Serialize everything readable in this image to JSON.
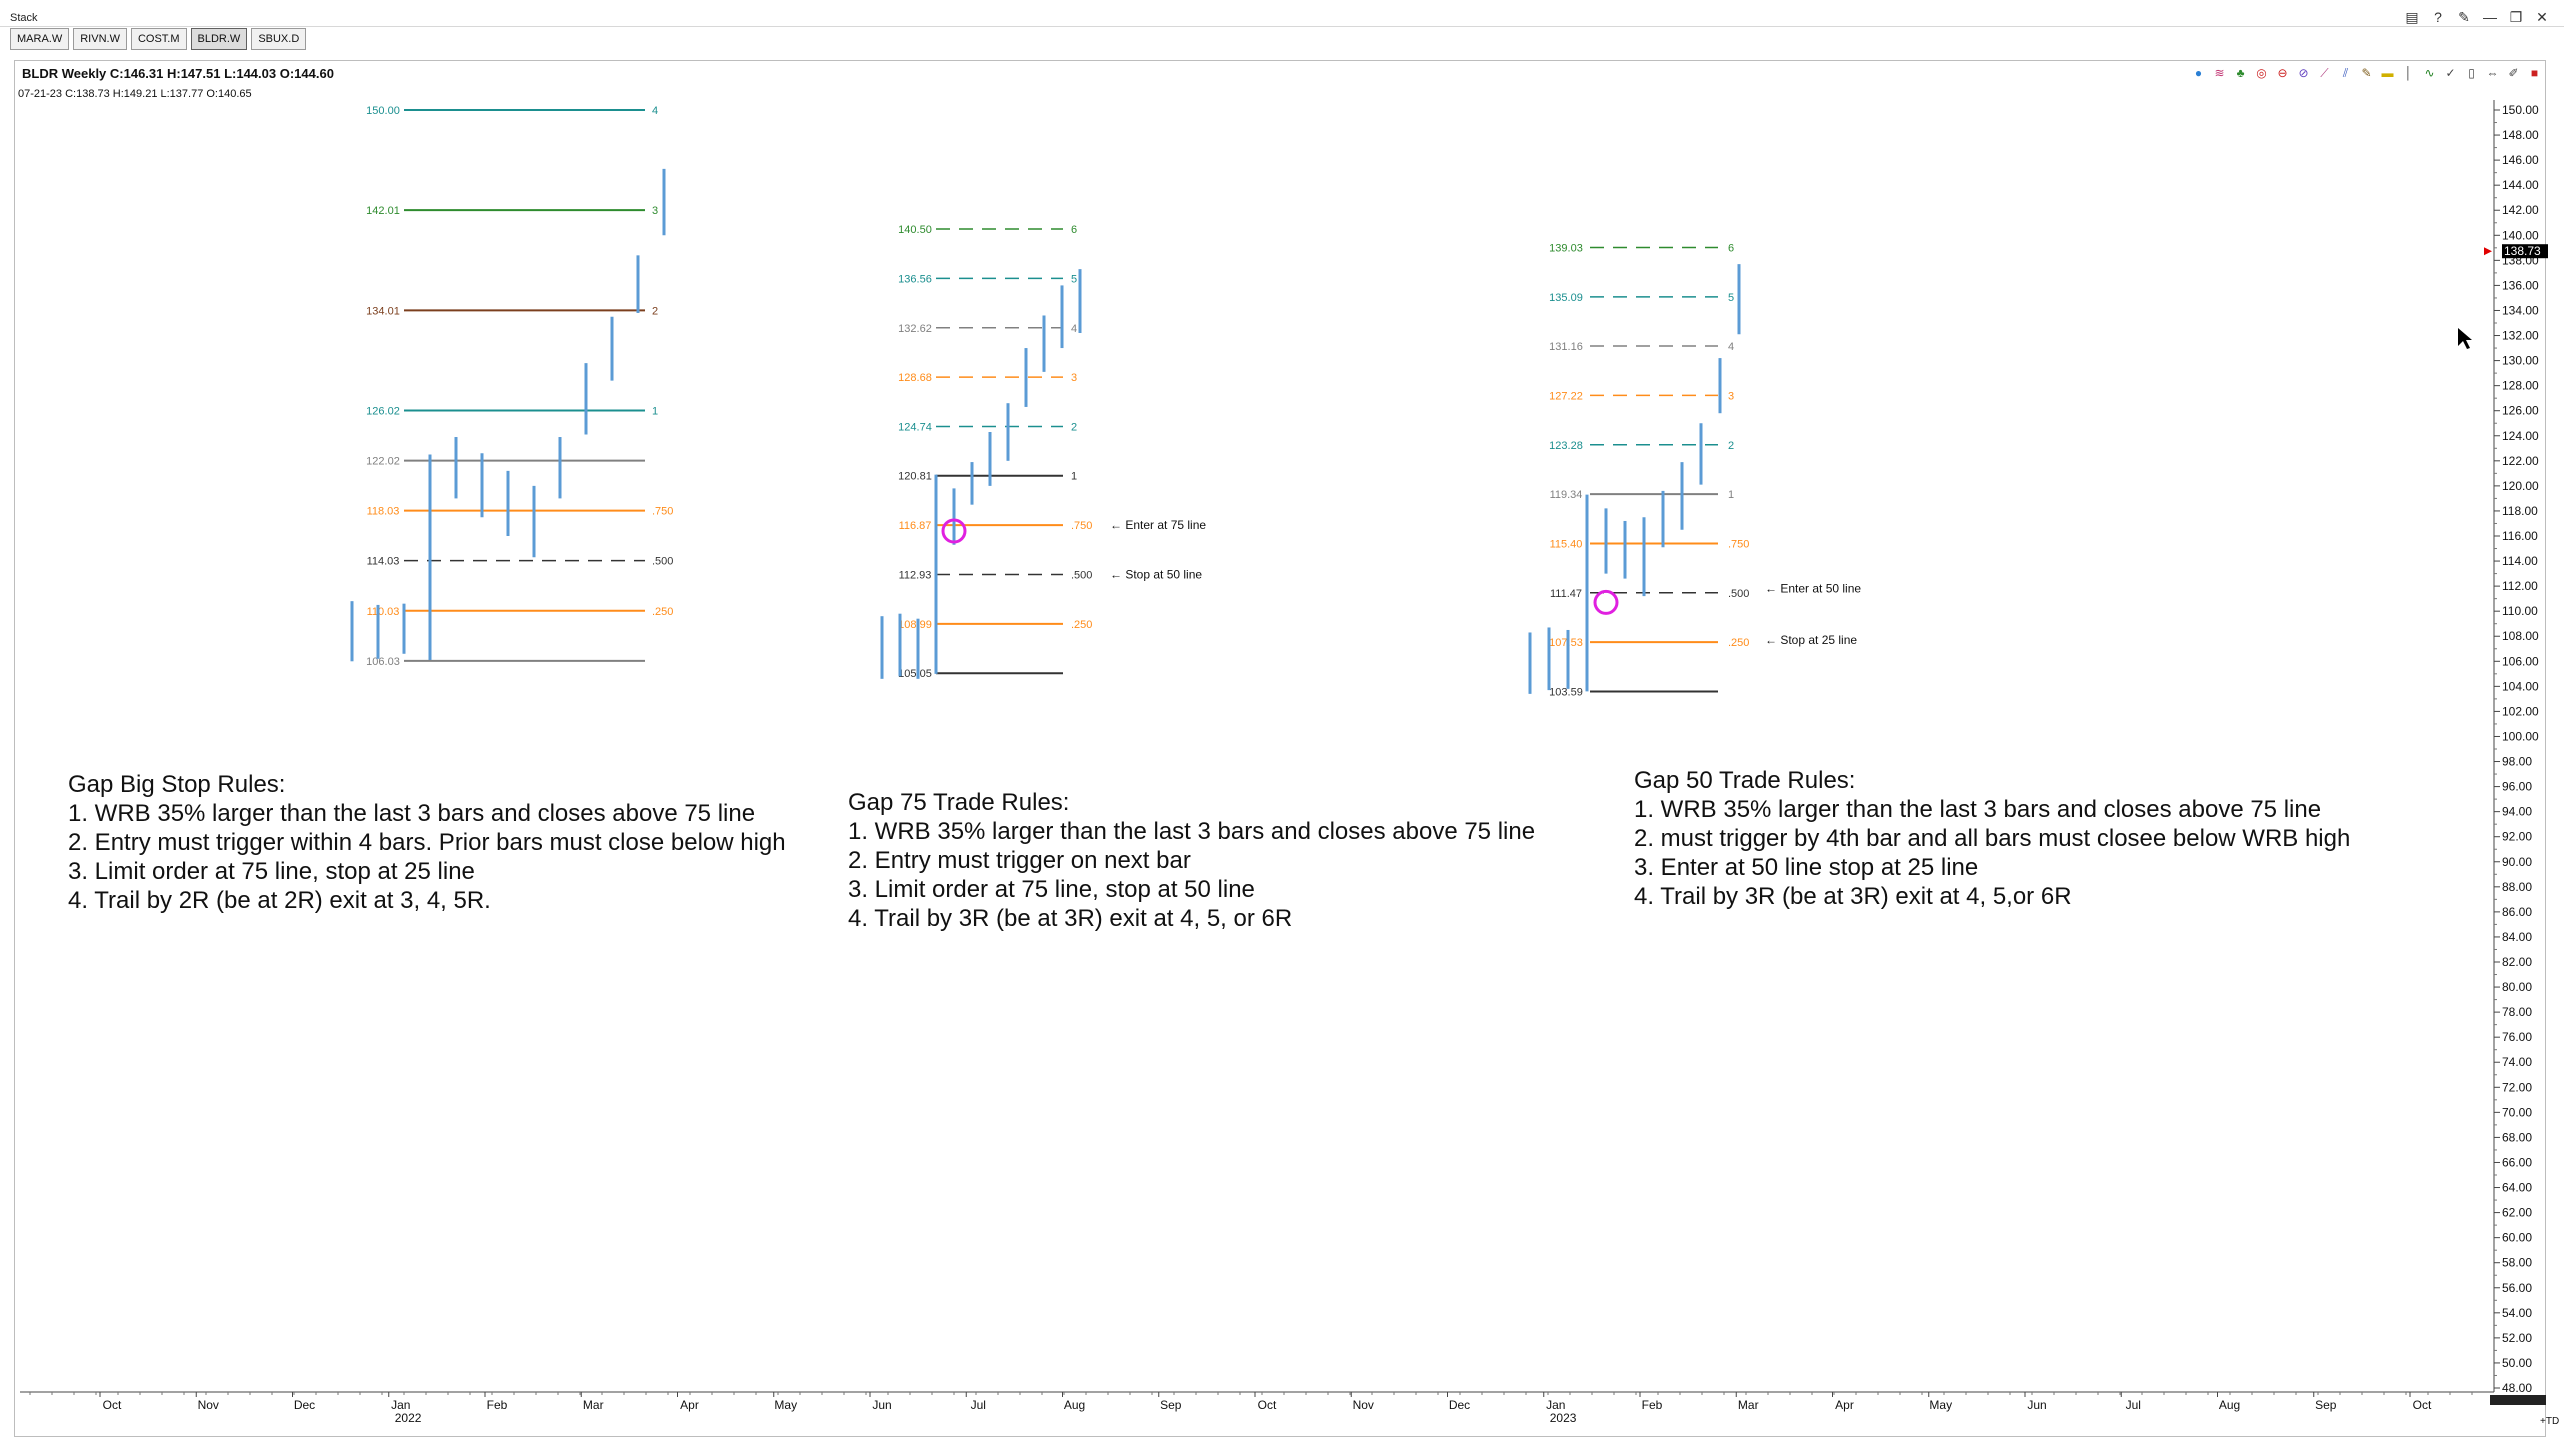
{
  "window": {
    "title": "Stack",
    "controls": [
      "▤",
      "?",
      "✎",
      "—",
      "❐",
      "✕"
    ]
  },
  "tabs": [
    {
      "label": "MARA.W",
      "active": false
    },
    {
      "label": "RIVN.W",
      "active": false
    },
    {
      "label": "COST.M",
      "active": false
    },
    {
      "label": "BLDR.W",
      "active": true
    },
    {
      "label": "SBUX.D",
      "active": false
    }
  ],
  "header": {
    "line1": "BLDR Weekly C:146.31 H:147.51 L:144.03 O:144.60",
    "line2": "07-21-23 C:138.73 H:149.21 L:137.77 O:140.65"
  },
  "toolbar_icons": [
    "color-drop-icon",
    "wave-icon",
    "tree-icon",
    "ring-icon",
    "circle-cross-icon",
    "circle-slash-icon",
    "diagonal-icon",
    "double-line-icon",
    "pencil-icon",
    "rectangle-icon",
    "vertical-line-icon",
    "zigzag-icon",
    "checkmark-icon",
    "capsule-icon",
    "arrows-icon",
    "pen-icon",
    "square-icon"
  ],
  "colors": {
    "bar": "#5b9bd5",
    "green": "#2e8b2e",
    "brown": "#7b3f1e",
    "teal": "#1b8f8f",
    "orange": "#ff8c1a",
    "gray": "#808080",
    "dark": "#333333",
    "circle": "#e020e0",
    "pricemarker": "#e00000"
  },
  "chart_data": {
    "type": "bar",
    "title": "BLDR Weekly",
    "y_axis": {
      "min": 48,
      "max": 150,
      "ticks": [
        "150.00",
        "148.00",
        "146.00",
        "144.00",
        "142.00",
        "140.00",
        "138.00",
        "136.00",
        "134.00",
        "132.00",
        "130.00",
        "128.00",
        "126.00",
        "124.00",
        "122.00",
        "120.00",
        "118.00",
        "116.00",
        "114.00",
        "112.00",
        "110.00",
        "108.00",
        "106.00",
        "104.00",
        "102.00",
        "100.00",
        "98.00",
        "96.00",
        "94.00",
        "92.00",
        "90.00",
        "88.00",
        "86.00",
        "84.00",
        "82.00",
        "80.00",
        "78.00",
        "76.00",
        "74.00",
        "72.00",
        "70.00",
        "68.00",
        "66.00",
        "64.00",
        "62.00",
        "60.00",
        "58.00",
        "56.00",
        "54.00",
        "52.00",
        "50.00",
        "48.00"
      ],
      "last_price": "138.73"
    },
    "x_axis": {
      "labels": [
        {
          "label": "Oct",
          "year": ""
        },
        {
          "label": "Nov",
          "year": ""
        },
        {
          "label": "Dec",
          "year": ""
        },
        {
          "label": "Jan",
          "year": "2022"
        },
        {
          "label": "Feb",
          "year": ""
        },
        {
          "label": "Mar",
          "year": ""
        },
        {
          "label": "Apr",
          "year": ""
        },
        {
          "label": "May",
          "year": ""
        },
        {
          "label": "Jun",
          "year": ""
        },
        {
          "label": "Jul",
          "year": ""
        },
        {
          "label": "Aug",
          "year": ""
        },
        {
          "label": "Sep",
          "year": ""
        },
        {
          "label": "Oct",
          "year": ""
        },
        {
          "label": "Nov",
          "year": ""
        },
        {
          "label": "Dec",
          "year": ""
        },
        {
          "label": "Jan",
          "year": "2023"
        },
        {
          "label": "Feb",
          "year": ""
        },
        {
          "label": "Mar",
          "year": ""
        },
        {
          "label": "Apr",
          "year": ""
        },
        {
          "label": "May",
          "year": ""
        },
        {
          "label": "Jun",
          "year": ""
        },
        {
          "label": "Jul",
          "year": ""
        },
        {
          "label": "Aug",
          "year": ""
        },
        {
          "label": "Sep",
          "year": ""
        },
        {
          "label": "Oct",
          "year": ""
        }
      ],
      "corner_label": "+TD"
    },
    "setups": [
      {
        "levels": [
          {
            "price": "150.00",
            "tag": "4",
            "color": "teal",
            "style": "solid"
          },
          {
            "price": "142.01",
            "tag": "3",
            "color": "green",
            "style": "solid"
          },
          {
            "price": "134.01",
            "tag": "2",
            "color": "brown",
            "style": "solid"
          },
          {
            "price": "126.02",
            "tag": "1",
            "color": "teal",
            "style": "solid"
          },
          {
            "price": "122.02",
            "tag": "",
            "color": "gray",
            "style": "solid"
          },
          {
            "price": "118.03",
            "tag": ".750",
            "color": "orange",
            "style": "solid"
          },
          {
            "price": "114.03",
            "tag": ".500",
            "color": "dark",
            "style": "dashed"
          },
          {
            "price": "110.03",
            "tag": ".250",
            "color": "orange",
            "style": "solid"
          },
          {
            "price": "106.03",
            "tag": "",
            "color": "gray",
            "style": "solid"
          }
        ],
        "bars": [
          {
            "high": 110.8,
            "low": 106.0
          },
          {
            "high": 110.5,
            "low": 106.2
          },
          {
            "high": 110.6,
            "low": 106.6
          },
          {
            "high": 122.5,
            "low": 106.1
          },
          {
            "high": 123.9,
            "low": 119.0
          },
          {
            "high": 122.6,
            "low": 117.5
          },
          {
            "high": 121.2,
            "low": 116.0
          },
          {
            "high": 120.0,
            "low": 114.3
          },
          {
            "high": 123.9,
            "low": 119.0
          },
          {
            "high": 129.8,
            "low": 124.1
          },
          {
            "high": 133.5,
            "low": 128.4
          },
          {
            "high": 138.4,
            "low": 133.8
          },
          {
            "high": 145.3,
            "low": 140.0
          }
        ],
        "annotations": [],
        "circle": null
      },
      {
        "levels": [
          {
            "price": "140.50",
            "tag": "6",
            "color": "green",
            "style": "dashed"
          },
          {
            "price": "136.56",
            "tag": "5",
            "color": "teal",
            "style": "dashed"
          },
          {
            "price": "132.62",
            "tag": "4",
            "color": "gray",
            "style": "dashed"
          },
          {
            "price": "128.68",
            "tag": "3",
            "color": "orange",
            "style": "dashed"
          },
          {
            "price": "124.74",
            "tag": "2",
            "color": "teal",
            "style": "dashed"
          },
          {
            "price": "120.81",
            "tag": "1",
            "color": "dark",
            "style": "solid"
          },
          {
            "price": "116.87",
            "tag": ".750",
            "color": "orange",
            "style": "solid"
          },
          {
            "price": "112.93",
            "tag": ".500",
            "color": "dark",
            "style": "dashed"
          },
          {
            "price": "108.99",
            "tag": ".250",
            "color": "orange",
            "style": "solid"
          },
          {
            "price": "105.05",
            "tag": "",
            "color": "dark",
            "style": "solid"
          }
        ],
        "bars": [
          {
            "high": 109.6,
            "low": 104.6
          },
          {
            "high": 109.8,
            "low": 104.8
          },
          {
            "high": 109.4,
            "low": 104.6
          },
          {
            "high": 120.9,
            "low": 105.0
          },
          {
            "high": 119.8,
            "low": 115.3
          },
          {
            "high": 121.9,
            "low": 118.5
          },
          {
            "high": 124.3,
            "low": 120.0
          },
          {
            "high": 126.6,
            "low": 122.0
          },
          {
            "high": 131.0,
            "low": 126.3
          },
          {
            "high": 133.6,
            "low": 129.1
          },
          {
            "high": 136.0,
            "low": 131.0
          },
          {
            "high": 137.3,
            "low": 132.2
          }
        ],
        "annotations": [
          {
            "price": 116.87,
            "text": "Enter at 75 line"
          },
          {
            "price": 112.93,
            "text": "Stop at 50 line"
          }
        ],
        "circle": {
          "bar": 4,
          "price": 116.4
        }
      },
      {
        "levels": [
          {
            "price": "139.03",
            "tag": "6",
            "color": "green",
            "style": "dashed"
          },
          {
            "price": "135.09",
            "tag": "5",
            "color": "teal",
            "style": "dashed"
          },
          {
            "price": "131.16",
            "tag": "4",
            "color": "gray",
            "style": "dashed"
          },
          {
            "price": "127.22",
            "tag": "3",
            "color": "orange",
            "style": "dashed"
          },
          {
            "price": "123.28",
            "tag": "2",
            "color": "teal",
            "style": "dashed"
          },
          {
            "price": "119.34",
            "tag": "1",
            "color": "gray",
            "style": "solid"
          },
          {
            "price": "115.40",
            "tag": ".750",
            "color": "orange",
            "style": "solid"
          },
          {
            "price": "111.47",
            "tag": ".500",
            "color": "dark",
            "style": "dashed"
          },
          {
            "price": "107.53",
            "tag": ".250",
            "color": "orange",
            "style": "solid"
          },
          {
            "price": "103.59",
            "tag": "",
            "color": "dark",
            "style": "solid"
          }
        ],
        "bars": [
          {
            "high": 108.3,
            "low": 103.4
          },
          {
            "high": 108.7,
            "low": 103.7
          },
          {
            "high": 108.5,
            "low": 103.8
          },
          {
            "high": 119.3,
            "low": 103.6
          },
          {
            "high": 118.2,
            "low": 113.0
          },
          {
            "high": 117.2,
            "low": 112.6
          },
          {
            "high": 117.5,
            "low": 111.2
          },
          {
            "high": 119.6,
            "low": 115.1
          },
          {
            "high": 121.9,
            "low": 116.5
          },
          {
            "high": 125.0,
            "low": 120.1
          },
          {
            "high": 130.2,
            "low": 125.8
          },
          {
            "high": 137.7,
            "low": 132.1
          }
        ],
        "annotations": [
          {
            "price": 111.8,
            "text": "Enter at 50 line"
          },
          {
            "price": 107.7,
            "text": "Stop at 25 line"
          }
        ],
        "circle": {
          "bar": 4,
          "price": 110.7
        }
      }
    ]
  },
  "rules": [
    {
      "lines": [
        "Gap Big Stop Rules:",
        "1. WRB 35% larger than the last 3 bars and closes above 75 line",
        "2. Entry must trigger within 4 bars. Prior bars must close below high",
        "3. Limit order at 75 line, stop at 25 line",
        "4. Trail by 2R (be at 2R) exit at 3, 4, 5R."
      ]
    },
    {
      "lines": [
        "Gap 75 Trade Rules:",
        "1. WRB 35% larger than the last 3 bars and closes above 75 line",
        "2. Entry must trigger on next bar",
        "3. Limit order at 75 line, stop at 50 line",
        "4. Trail by 3R (be at 3R) exit at 4, 5, or 6R"
      ]
    },
    {
      "lines": [
        "Gap 50 Trade Rules:",
        "1. WRB 35% larger than the last 3 bars and closes above 75 line",
        "2. must trigger by 4th bar and all bars must closee below WRB high",
        "3. Enter at 50 line stop at 25 line",
        "4. Trail by 3R (be at 3R) exit at 4, 5,or 6R"
      ]
    }
  ]
}
